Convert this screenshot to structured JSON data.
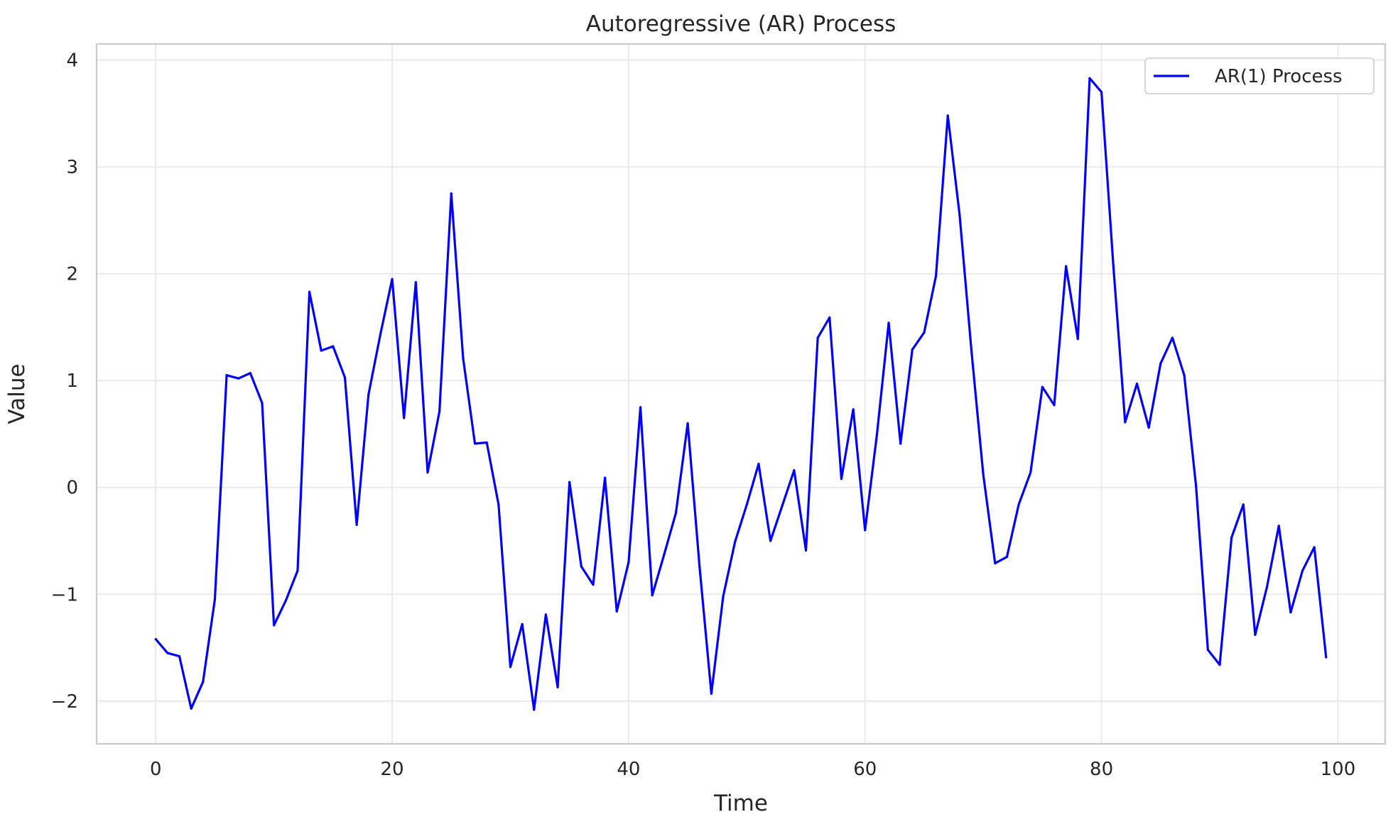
{
  "chart_data": {
    "type": "line",
    "title": "Autoregressive (AR) Process",
    "xlabel": "Time",
    "ylabel": "Value",
    "xlim": [
      -5,
      104
    ],
    "ylim": [
      -2.4,
      4.15
    ],
    "xticks": [
      0,
      20,
      40,
      60,
      80,
      100
    ],
    "yticks": [
      -2,
      -1,
      0,
      1,
      2,
      3,
      4
    ],
    "xtick_labels": [
      "0",
      "20",
      "40",
      "60",
      "80",
      "100"
    ],
    "ytick_labels": [
      "−2",
      "−1",
      "0",
      "1",
      "2",
      "3",
      "4"
    ],
    "grid": true,
    "legend": {
      "position": "top-right",
      "entries": [
        "AR(1) Process"
      ]
    },
    "series": [
      {
        "name": "AR(1) Process",
        "color": "#0000ff",
        "x": [
          0,
          1,
          2,
          3,
          4,
          5,
          6,
          7,
          8,
          9,
          10,
          11,
          12,
          13,
          14,
          15,
          16,
          17,
          18,
          19,
          20,
          21,
          22,
          23,
          24,
          25,
          26,
          27,
          28,
          29,
          30,
          31,
          32,
          33,
          34,
          35,
          36,
          37,
          38,
          39,
          40,
          41,
          42,
          43,
          44,
          45,
          46,
          47,
          48,
          49,
          50,
          51,
          52,
          53,
          54,
          55,
          56,
          57,
          58,
          59,
          60,
          61,
          62,
          63,
          64,
          65,
          66,
          67,
          68,
          69,
          70,
          71,
          72,
          73,
          74,
          75,
          76,
          77,
          78,
          79,
          80,
          81,
          82,
          83,
          84,
          85,
          86,
          87,
          88,
          89,
          90,
          91,
          92,
          93,
          94,
          95,
          96,
          97,
          98,
          99
        ],
        "values": [
          -1.42,
          -1.55,
          -1.58,
          -2.07,
          -1.82,
          -1.05,
          1.05,
          1.02,
          1.07,
          0.79,
          -1.29,
          -1.06,
          -0.78,
          1.83,
          1.28,
          1.32,
          1.03,
          -0.35,
          0.87,
          1.43,
          1.95,
          0.65,
          1.92,
          0.14,
          0.71,
          2.75,
          1.21,
          0.41,
          0.42,
          -0.16,
          -1.68,
          -1.28,
          -2.08,
          -1.19,
          -1.87,
          0.05,
          -0.74,
          -0.91,
          0.09,
          -1.16,
          -0.7,
          0.75,
          -1.01,
          -0.63,
          -0.24,
          0.6,
          -0.74,
          -1.93,
          -1.02,
          -0.51,
          -0.16,
          0.22,
          -0.5,
          -0.17,
          0.16,
          -0.59,
          1.4,
          1.59,
          0.08,
          0.73,
          -0.4,
          0.49,
          1.54,
          0.41,
          1.29,
          1.45,
          1.98,
          3.48,
          2.55,
          1.28,
          0.12,
          -0.71,
          -0.65,
          -0.16,
          0.14,
          0.94,
          0.77,
          2.07,
          1.39,
          3.83,
          3.7,
          2.08,
          0.61,
          0.97,
          0.56,
          1.16,
          1.4,
          1.05,
          0.01,
          -1.52,
          -1.66,
          -0.47,
          -0.16,
          -1.38,
          -0.93,
          -0.36,
          -1.17,
          -0.78,
          -0.56,
          -1.59
        ]
      }
    ]
  }
}
